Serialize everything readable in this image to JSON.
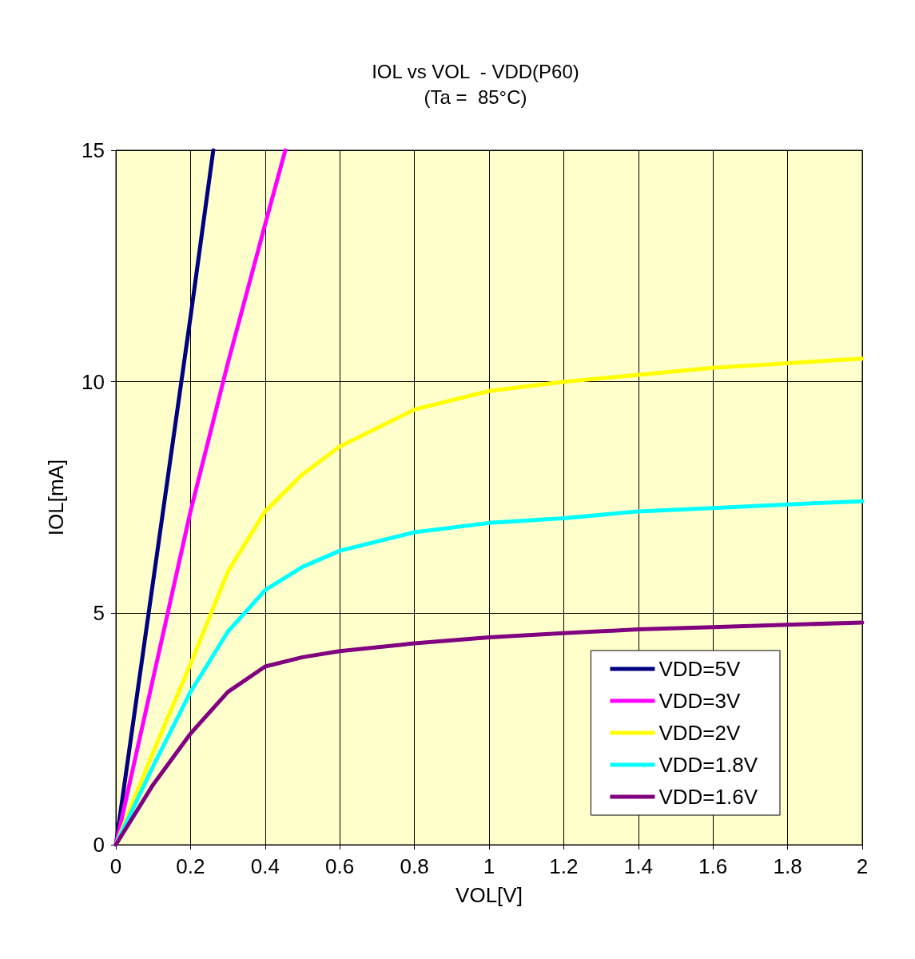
{
  "chart_data": {
    "type": "line",
    "title": "IOL vs VOL  - VDD(P60)",
    "subtitle": "(Ta =  85°C)",
    "xlabel": "VOL[V]",
    "ylabel": "IOL[mA]",
    "xlim": [
      0,
      2
    ],
    "xticks": [
      0,
      0.2,
      0.4,
      0.6,
      0.8,
      1,
      1.2,
      1.4,
      1.6,
      1.8,
      2
    ],
    "ylim": [
      0,
      15
    ],
    "yticks": [
      0,
      5,
      10,
      15
    ],
    "grid": true,
    "legend": "bottom right",
    "marker": "none",
    "line_style": "solid",
    "series": [
      {
        "name": "VDD=5V",
        "color": "#000080",
        "x": [
          0,
          0.1,
          0.2,
          0.261
        ],
        "values": [
          0,
          5.7,
          11.4,
          15
        ]
      },
      {
        "name": "VDD=3V",
        "color": "#ff00ff",
        "x": [
          0,
          0.1,
          0.2,
          0.3,
          0.4,
          0.454
        ],
        "values": [
          0,
          3.6,
          7.2,
          10.4,
          13.4,
          15
        ]
      },
      {
        "name": "VDD=2V",
        "color": "#ffff00",
        "x": [
          0,
          0.1,
          0.2,
          0.3,
          0.4,
          0.5,
          0.6,
          0.8,
          1,
          1.2,
          1.4,
          1.6,
          1.8,
          2
        ],
        "values": [
          0,
          2,
          3.9,
          5.9,
          7.2,
          8,
          8.6,
          9.4,
          9.8,
          10,
          10.15,
          10.3,
          10.4,
          10.5
        ]
      },
      {
        "name": "VDD=1.8V",
        "color": "#00ffff",
        "x": [
          0,
          0.1,
          0.2,
          0.3,
          0.4,
          0.5,
          0.6,
          0.8,
          1,
          1.2,
          1.4,
          1.6,
          1.8,
          2
        ],
        "values": [
          0,
          1.7,
          3.3,
          4.6,
          5.5,
          6,
          6.35,
          6.75,
          6.95,
          7.05,
          7.2,
          7.27,
          7.35,
          7.42
        ]
      },
      {
        "name": "VDD=1.6V",
        "color": "#800080",
        "x": [
          0,
          0.1,
          0.2,
          0.3,
          0.4,
          0.5,
          0.6,
          0.8,
          1,
          1.2,
          1.4,
          1.6,
          1.8,
          2
        ],
        "values": [
          0,
          1.3,
          2.4,
          3.3,
          3.85,
          4.05,
          4.18,
          4.35,
          4.48,
          4.57,
          4.65,
          4.7,
          4.75,
          4.8
        ]
      }
    ]
  }
}
